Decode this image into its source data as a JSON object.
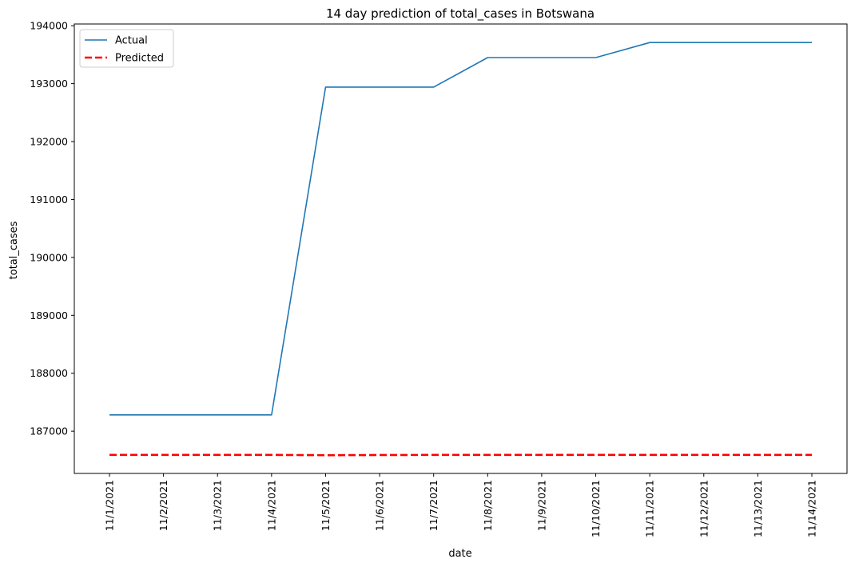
{
  "chart_data": {
    "type": "line",
    "title": "14 day prediction of total_cases in Botswana",
    "xlabel": "date",
    "ylabel": "total_cases",
    "categories": [
      "11/1/2021",
      "11/2/2021",
      "11/3/2021",
      "11/4/2021",
      "11/5/2021",
      "11/6/2021",
      "11/7/2021",
      "11/8/2021",
      "11/9/2021",
      "11/10/2021",
      "11/11/2021",
      "11/12/2021",
      "11/13/2021",
      "11/14/2021"
    ],
    "series": [
      {
        "name": "Actual",
        "color": "#1f77b4",
        "style": "solid",
        "values": [
          187280,
          187280,
          187280,
          187280,
          192940,
          192940,
          192940,
          193450,
          193450,
          193450,
          193710,
          193710,
          193710,
          193710
        ]
      },
      {
        "name": "Predicted",
        "color": "#ff0000",
        "style": "dashed",
        "values": [
          186590,
          186590,
          186590,
          186590,
          186585,
          186588,
          186590,
          186590,
          186590,
          186590,
          186590,
          186590,
          186590,
          186590
        ]
      }
    ],
    "ylim": [
      186270,
      194030
    ],
    "yticks": [
      187000,
      188000,
      189000,
      190000,
      191000,
      192000,
      193000,
      194000
    ],
    "grid": false,
    "legend": "top-left"
  }
}
